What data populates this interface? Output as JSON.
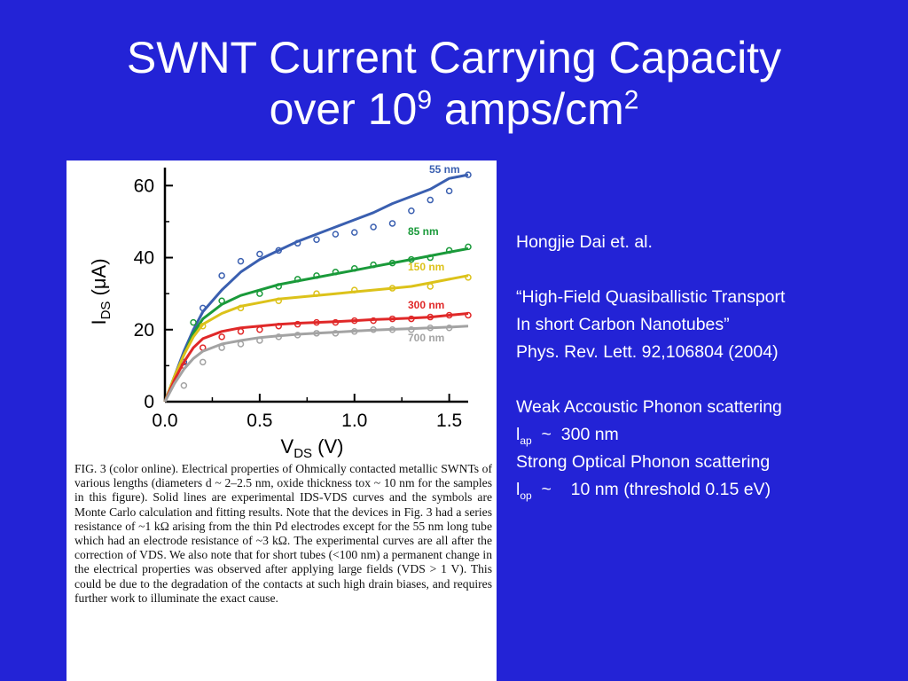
{
  "slide": {
    "title_line1": "SWNT Current Carrying Capacity",
    "title_line2_prefix": "over 10",
    "title_sup1": "9",
    "title_line2_mid": " amps/cm",
    "title_sup2": "2",
    "background": "#2323d6"
  },
  "side_text": {
    "authors": "Hongjie Dai et. al.",
    "paper_title_1": "“High-Field Quasiballistic Transport",
    "paper_title_2": "In short  Carbon Nanotubes”",
    "journal": "Phys. Rev. Lett. 92,106804 (2004)",
    "weak_label": "Weak Accoustic Phonon scattering",
    "lap_l": "l",
    "lap_sub": "ap",
    "lap_value": "  ~  300 nm",
    "strong_label": "Strong Optical Phonon scattering",
    "lop_l": "l",
    "lop_sub": "op",
    "lop_value": "  ~    10 nm (threshold 0.15 eV)"
  },
  "caption": {
    "text": "FIG. 3 (color online). Electrical properties of Ohmically contacted metallic SWNTs of various lengths (diameters d ~ 2–2.5 nm, oxide thickness tox ~ 10 nm for the samples in this figure). Solid lines are experimental IDS-VDS curves and the symbols are Monte Carlo calculation and fitting results. Note that the devices in Fig. 3 had a series resistance of ~1 kΩ arising from the thin Pd electrodes except for the 55 nm long tube which had an electrode resistance of ~3 kΩ. The experimental curves are all after the correction of VDS. We also note that for short tubes (<100 nm) a permanent change in the electrical properties was observed after applying large fields (VDS > 1 V). This could be due to the degradation of the contacts at such high drain biases, and requires further work to illuminate the exact cause."
  },
  "chart_data": {
    "type": "line",
    "xlabel_main": "V",
    "xlabel_sub": "DS",
    "xlabel_unit": " (V)",
    "ylabel_main": "I",
    "ylabel_sub": "DS",
    "ylabel_unit": " (μA)",
    "xlim": [
      0,
      1.6
    ],
    "ylim": [
      0,
      65
    ],
    "xticks": [
      "0.0",
      "0.5",
      "1.0",
      "1.5"
    ],
    "xtick_values": [
      0,
      0.5,
      1.0,
      1.5
    ],
    "yticks": [
      "0",
      "20",
      "40",
      "60"
    ],
    "ytick_values": [
      0,
      20,
      40,
      60
    ],
    "series": [
      {
        "name": "55 nm",
        "color": "#3a5fb0",
        "x": [
          0,
          0.05,
          0.1,
          0.15,
          0.2,
          0.3,
          0.4,
          0.5,
          0.6,
          0.7,
          0.8,
          0.9,
          1.0,
          1.1,
          1.2,
          1.3,
          1.4,
          1.5,
          1.6
        ],
        "y": [
          0,
          7,
          14,
          20,
          25,
          31,
          36,
          39.5,
          42,
          44.5,
          46.5,
          48.5,
          50.5,
          52.5,
          55,
          57,
          59,
          62,
          63
        ],
        "mc_x": [
          0.1,
          0.2,
          0.3,
          0.4,
          0.5,
          0.6,
          0.7,
          0.8,
          0.9,
          1.0,
          1.1,
          1.2,
          1.3,
          1.4,
          1.5,
          1.6
        ],
        "mc_y": [
          11,
          26,
          35,
          39,
          41,
          42,
          44,
          45,
          46.5,
          47,
          48.5,
          49.5,
          53,
          56,
          58.5,
          63
        ]
      },
      {
        "name": "85 nm",
        "color": "#1a9a3a",
        "x": [
          0,
          0.05,
          0.1,
          0.15,
          0.2,
          0.3,
          0.4,
          0.5,
          0.6,
          0.7,
          0.8,
          0.9,
          1.0,
          1.1,
          1.2,
          1.3,
          1.4,
          1.5,
          1.6
        ],
        "y": [
          0,
          7,
          13,
          19,
          23,
          27,
          29.5,
          31,
          32.5,
          33.5,
          34.5,
          35.5,
          36.5,
          37.5,
          38.5,
          39.5,
          40.5,
          41.5,
          42.5
        ],
        "mc_x": [
          0.15,
          0.3,
          0.5,
          0.6,
          0.7,
          0.8,
          0.9,
          1.0,
          1.1,
          1.2,
          1.3,
          1.4,
          1.5,
          1.6
        ],
        "mc_y": [
          22,
          28,
          30,
          32,
          34,
          35,
          36,
          37,
          38,
          38.5,
          39.5,
          40,
          42,
          43
        ]
      },
      {
        "name": "150 nm",
        "color": "#dcc21a",
        "x": [
          0,
          0.05,
          0.1,
          0.15,
          0.2,
          0.3,
          0.4,
          0.5,
          0.6,
          0.7,
          0.8,
          0.9,
          1.0,
          1.1,
          1.2,
          1.3,
          1.4,
          1.5,
          1.6
        ],
        "y": [
          0,
          7,
          13,
          18,
          21.5,
          24.5,
          26.5,
          27.5,
          28.5,
          29,
          29.5,
          30,
          30.5,
          31,
          31.5,
          32,
          33,
          34,
          35
        ],
        "mc_x": [
          0.2,
          0.4,
          0.6,
          0.8,
          1.0,
          1.2,
          1.4,
          1.6
        ],
        "mc_y": [
          21,
          26,
          28,
          30,
          31,
          31.5,
          32,
          34.5
        ]
      },
      {
        "name": "300 nm",
        "color": "#e02828",
        "x": [
          0,
          0.05,
          0.1,
          0.15,
          0.2,
          0.3,
          0.4,
          0.5,
          0.6,
          0.7,
          0.8,
          0.9,
          1.0,
          1.1,
          1.2,
          1.3,
          1.4,
          1.5,
          1.6
        ],
        "y": [
          0,
          6,
          11,
          15,
          17.5,
          19.5,
          20.5,
          21,
          21.5,
          21.8,
          22,
          22.2,
          22.5,
          22.8,
          23,
          23.2,
          23.5,
          24,
          24.5
        ],
        "mc_x": [
          0.1,
          0.2,
          0.3,
          0.4,
          0.5,
          0.6,
          0.7,
          0.8,
          0.9,
          1.0,
          1.1,
          1.2,
          1.3,
          1.4,
          1.5,
          1.6
        ],
        "mc_y": [
          10,
          15,
          18,
          19.5,
          20,
          21,
          21.5,
          22,
          22,
          22.5,
          22.5,
          23,
          23,
          23.5,
          24,
          24
        ]
      },
      {
        "name": "700 nm",
        "color": "#a3a3a3",
        "x": [
          0,
          0.05,
          0.1,
          0.15,
          0.2,
          0.3,
          0.4,
          0.5,
          0.6,
          0.7,
          0.8,
          0.9,
          1.0,
          1.1,
          1.2,
          1.3,
          1.4,
          1.5,
          1.6
        ],
        "y": [
          0,
          5,
          9,
          12,
          14,
          16,
          17,
          17.8,
          18.3,
          18.7,
          19,
          19.3,
          19.6,
          19.9,
          20.1,
          20.3,
          20.5,
          20.7,
          21
        ],
        "mc_x": [
          0.1,
          0.2,
          0.3,
          0.4,
          0.5,
          0.6,
          0.7,
          0.8,
          0.9,
          1.0,
          1.1,
          1.2,
          1.3,
          1.4,
          1.5
        ],
        "mc_y": [
          4.5,
          11,
          15,
          16,
          17,
          18,
          18.5,
          19,
          19,
          19.5,
          20,
          20,
          20,
          20.5,
          20.5
        ]
      }
    ]
  }
}
